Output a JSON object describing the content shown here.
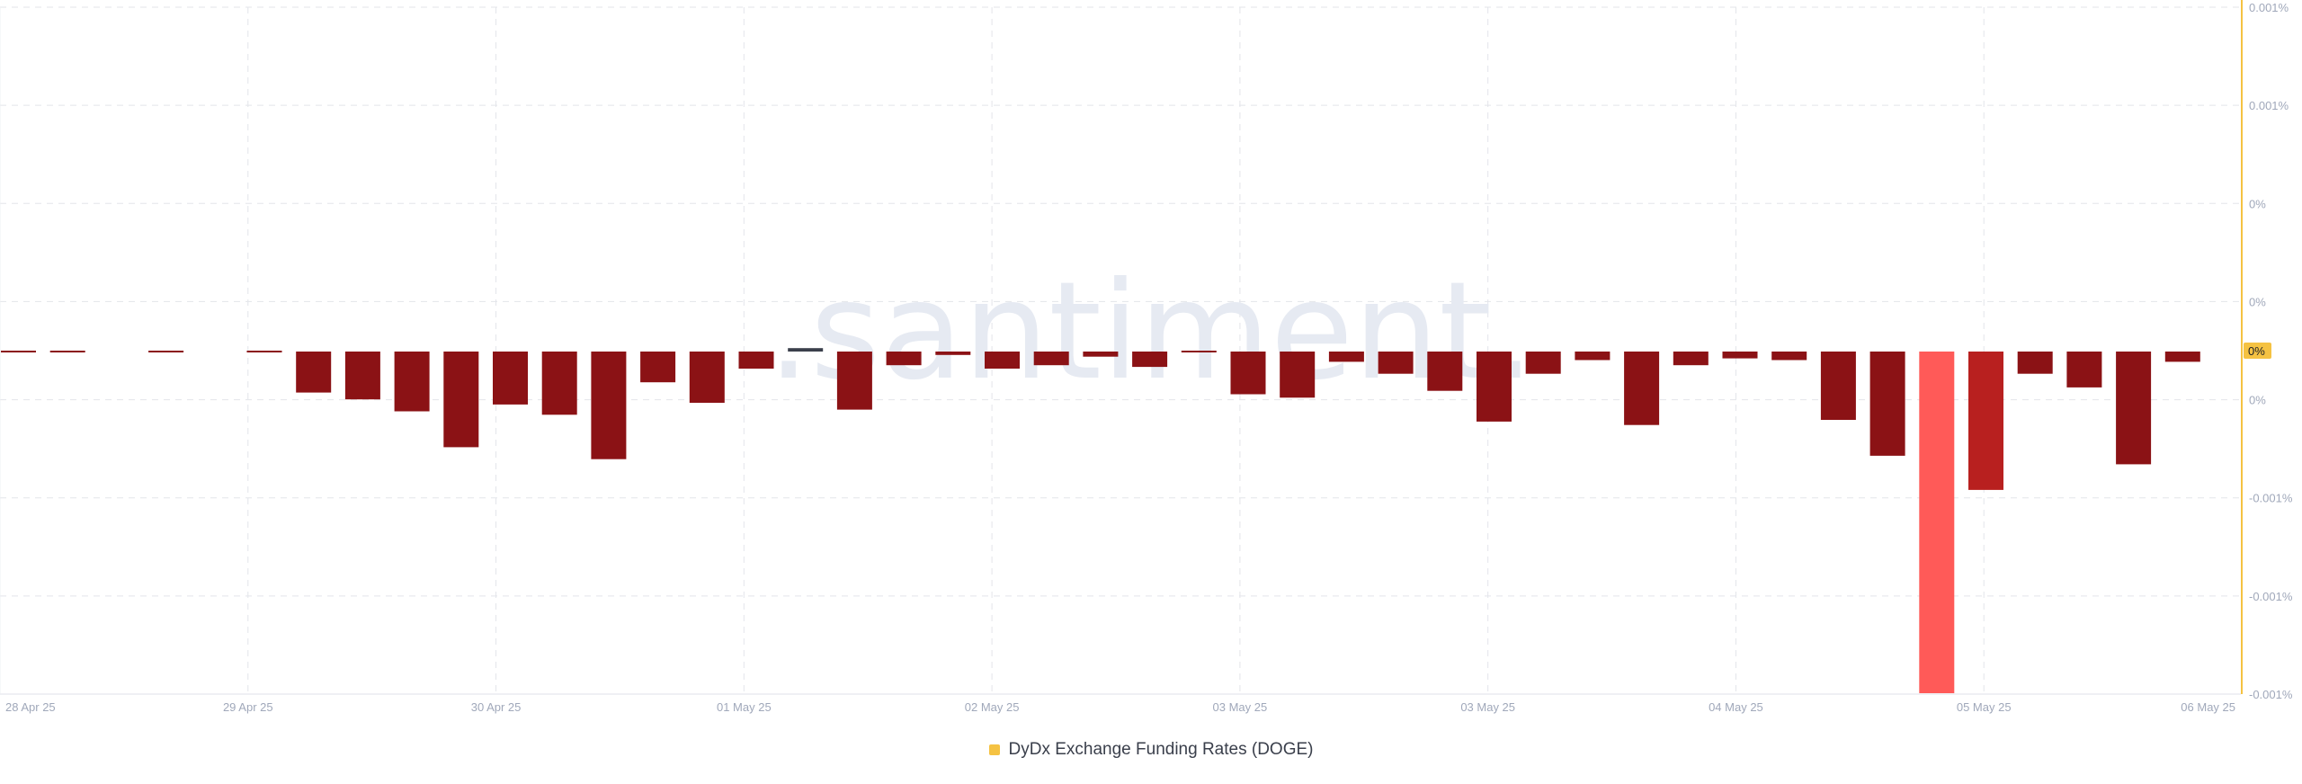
{
  "watermark": ".santiment.",
  "legend": {
    "label": "DyDx Exchange Funding Rates (DOGE)"
  },
  "colors": {
    "accent": "#f5c242",
    "bar_negative": "#8b1215",
    "bar_highlight": "#ff5a58",
    "bar_secondary": "#b8201f",
    "bar_positive": "#3a3f4b",
    "grid": "#e3e5ea",
    "axis_text": "#a0a8ba",
    "watermark": "#e6eaf2"
  },
  "chart_data": {
    "type": "bar",
    "x_ticks": [
      "28 Apr 25",
      "29 Apr 25",
      "30 Apr 25",
      "01 May 25",
      "02 May 25",
      "03 May 25",
      "03 May 25",
      "04 May 25",
      "05 May 25",
      "06 May 25"
    ],
    "y_ticks": [
      "0.001%",
      "0.001%",
      "0%",
      "0%",
      "0%",
      "-0.001%",
      "-0.001%",
      "-0.001%"
    ],
    "current_value_label": "0%",
    "ylim": [
      -0.002,
      0.002
    ],
    "grid": true,
    "legend_position": "bottom-center",
    "series": [
      {
        "name": "DyDx Exchange Funding Rates (DOGE)",
        "values": [
          -1e-05,
          -1e-05,
          null,
          -1e-05,
          null,
          -1e-05,
          -0.00024,
          -0.00028,
          -0.00035,
          -0.00056,
          -0.00031,
          -0.00037,
          -0.00063,
          -0.00018,
          -0.0003,
          -0.0001,
          2e-05,
          -0.00034,
          -8e-05,
          -2e-05,
          -0.0001,
          -8e-05,
          -3e-05,
          -9e-05,
          -1e-05,
          -0.00025,
          -0.00027,
          -6e-05,
          -0.00013,
          -0.00023,
          -0.00041,
          -0.00013,
          -5e-05,
          -0.00043,
          -8e-05,
          -4e-05,
          -5e-05,
          -0.0004,
          -0.00061,
          -0.002,
          -0.00081,
          -0.00013,
          -0.00021,
          -0.00066,
          -6e-05
        ],
        "highlight_index": 39,
        "secondary_index": 40
      }
    ]
  }
}
